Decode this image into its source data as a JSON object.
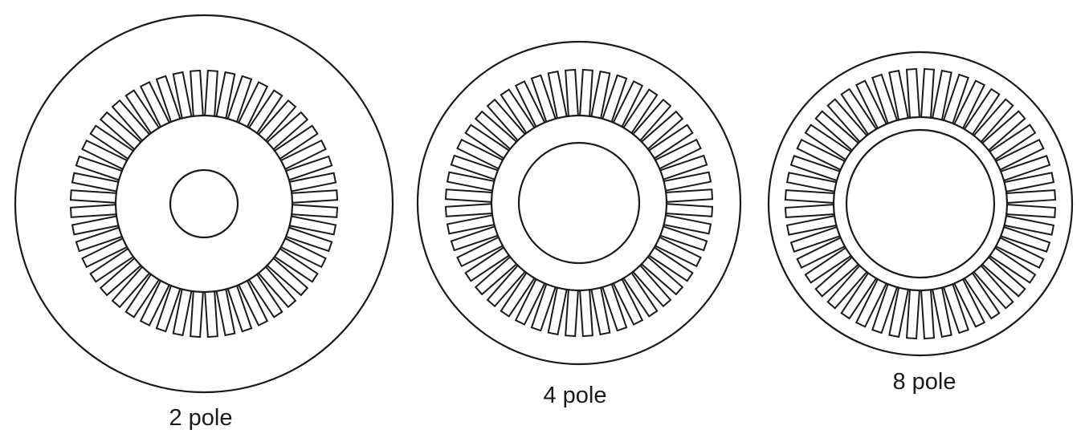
{
  "stators": [
    {
      "label": "2 pole"
    },
    {
      "label": "4 pole"
    },
    {
      "label": "8 pole"
    }
  ]
}
